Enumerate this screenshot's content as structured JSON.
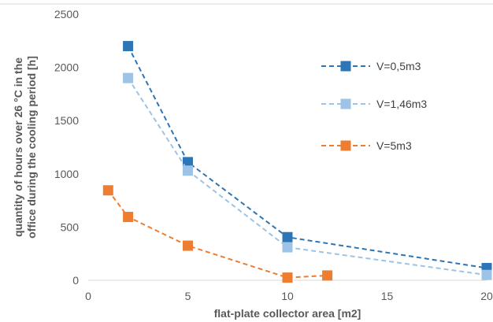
{
  "chart_data": {
    "type": "line",
    "title": "",
    "xlabel": "flat-plate collector area [m2]",
    "ylabel_lines": [
      "quantity of hours over 26 °C in the",
      "office during the cooling period [h]"
    ],
    "xlim": [
      0,
      20
    ],
    "ylim": [
      0,
      2500
    ],
    "xticks": [
      0,
      5,
      10,
      15,
      20
    ],
    "yticks": [
      0,
      500,
      1000,
      1500,
      2000,
      2500
    ],
    "grid": false,
    "legend_placement": "right",
    "series": [
      {
        "name": "V=0,5m3",
        "color": "#2e75b6",
        "x": [
          2,
          5,
          10,
          20
        ],
        "y": [
          2200,
          1110,
          405,
          115
        ]
      },
      {
        "name": "V=1,46m3",
        "color": "#9dc3e6",
        "x": [
          2,
          5,
          10,
          20
        ],
        "y": [
          1900,
          1030,
          310,
          50
        ]
      },
      {
        "name": "V=5m3",
        "color": "#ed7d31",
        "x": [
          1,
          2,
          5,
          10,
          12
        ],
        "y": [
          845,
          595,
          325,
          25,
          45
        ]
      }
    ]
  }
}
